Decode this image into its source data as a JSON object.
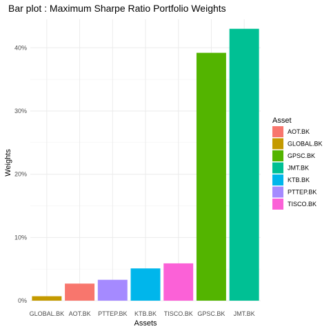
{
  "chart_data": {
    "type": "bar",
    "title": "Bar plot : Maximum Sharpe Ratio Portfolio Weights",
    "xlabel": "Assets",
    "ylabel": "Weights",
    "categories": [
      "GLOBAL.BK",
      "AOT.BK",
      "PTTEP.BK",
      "KTB.BK",
      "TISCO.BK",
      "GPSC.BK",
      "JMT.BK"
    ],
    "values": [
      0.7,
      2.7,
      3.3,
      5.1,
      5.9,
      39.2,
      43.0
    ],
    "bar_colors": [
      "#C49A00",
      "#F8766D",
      "#A58AFF",
      "#00B6EB",
      "#FB61D7",
      "#53B400",
      "#00C094"
    ],
    "ylim": [
      0,
      44.5
    ],
    "yticks": [
      0,
      10,
      20,
      30,
      40
    ],
    "ytick_labels": [
      "0%",
      "10%",
      "20%",
      "30%",
      "40%"
    ],
    "grid": true,
    "legend": {
      "title": "Asset",
      "placement": "right",
      "entries": [
        {
          "label": "AOT.BK",
          "color": "#F8766D"
        },
        {
          "label": "GLOBAL.BK",
          "color": "#C49A00"
        },
        {
          "label": "GPSC.BK",
          "color": "#53B400"
        },
        {
          "label": "JMT.BK",
          "color": "#00C094"
        },
        {
          "label": "KTB.BK",
          "color": "#00B6EB"
        },
        {
          "label": "PTTEP.BK",
          "color": "#A58AFF"
        },
        {
          "label": "TISCO.BK",
          "color": "#FB61D7"
        }
      ]
    }
  }
}
